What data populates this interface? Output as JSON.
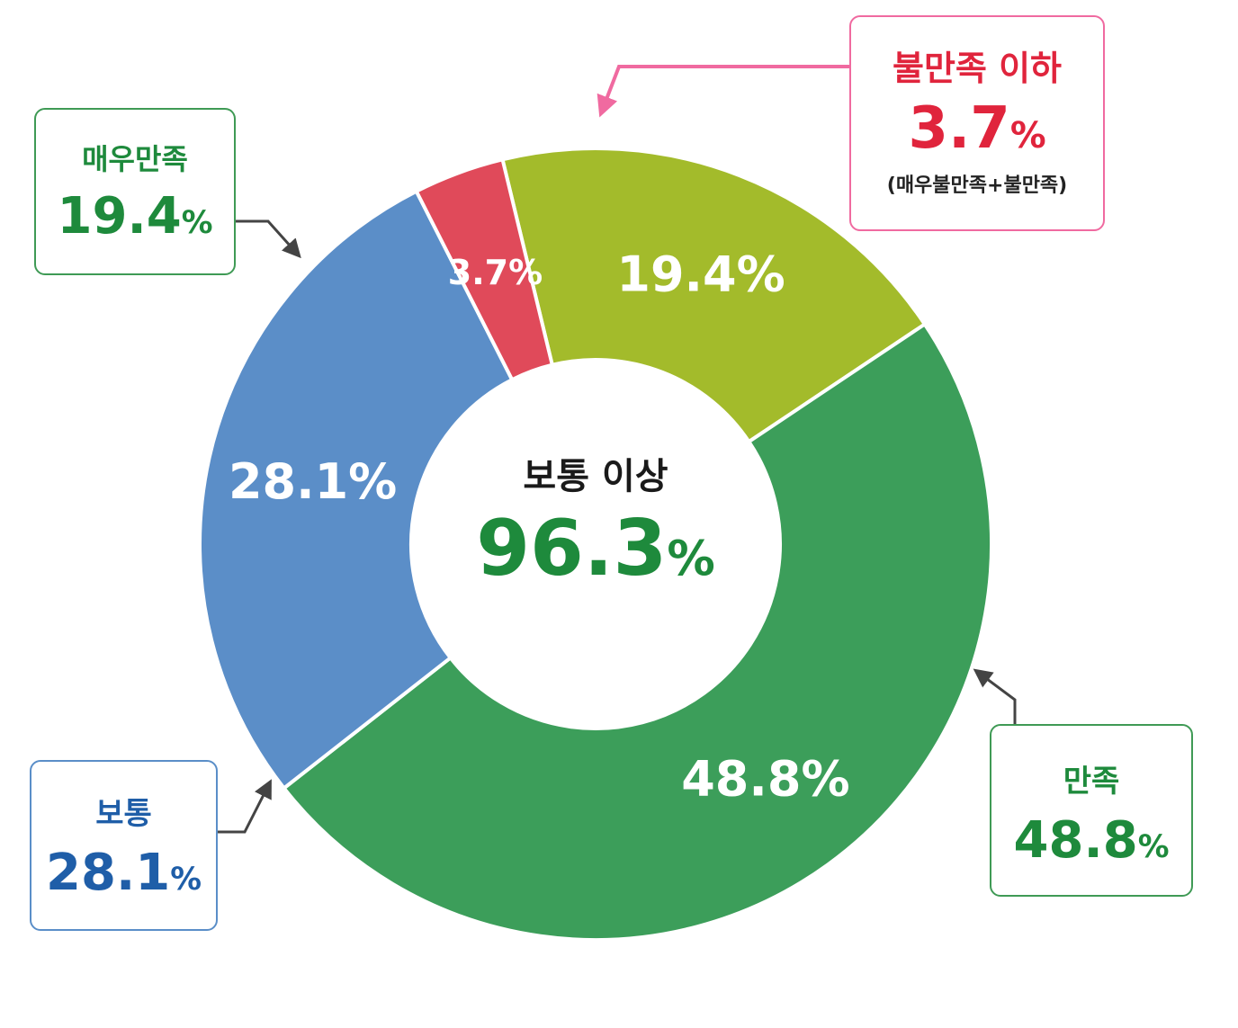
{
  "chart_data": {
    "type": "pie",
    "variant": "donut",
    "categories": [
      "매우만족",
      "만족",
      "보통",
      "불만족 이하"
    ],
    "values": [
      19.4,
      48.8,
      28.1,
      3.7
    ],
    "colors": [
      "#a3bb2b",
      "#3c9e5a",
      "#5b8ec8",
      "#e04a5a"
    ],
    "slice_labels": [
      "19.4%",
      "48.8%",
      "28.1%",
      "3.7%"
    ],
    "center": {
      "title": "보통 이상",
      "value": "96.3",
      "unit": "%"
    }
  },
  "callouts": {
    "very_satisfied": {
      "label": "매우만족",
      "value": "19.4",
      "unit": "%",
      "color": "#1e8a3c"
    },
    "satisfied": {
      "label": "만족",
      "value": "48.8",
      "unit": "%",
      "color": "#1e8a3c"
    },
    "normal": {
      "label": "보통",
      "value": "28.1",
      "unit": "%",
      "color": "#1f5ea8"
    },
    "dissatisfied": {
      "label": "불만족 이하",
      "value": "3.7",
      "unit": "%",
      "note": "(매우불만족+불만족)",
      "color": "#e0243c",
      "border": "#f06aa0"
    }
  }
}
